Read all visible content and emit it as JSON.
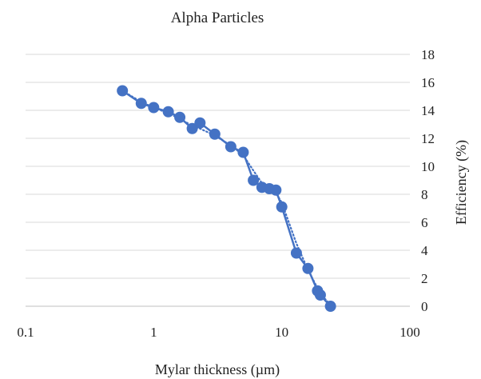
{
  "chart_data": {
    "type": "scatter",
    "title": "Alpha Particles",
    "xlabel": "Mylar thickness (µm)",
    "ylabel": "Efficiency (%)",
    "x_scale": "log",
    "xlim": [
      0.1,
      100
    ],
    "ylim": [
      0,
      18
    ],
    "x_ticks": [
      "0.1",
      "1",
      "10",
      "100"
    ],
    "y_ticks": [
      "0",
      "2",
      "4",
      "6",
      "8",
      "10",
      "12",
      "14",
      "16",
      "18"
    ],
    "y_axis_side": "right",
    "grid": "horizontal",
    "color": "#4472c4",
    "series": [
      {
        "style": "line-markers",
        "x": [
          0.57,
          0.8,
          1.0,
          1.3,
          1.6,
          2.0,
          2.3,
          3.0,
          4.0,
          5.0,
          6.0,
          7.0,
          8.0,
          9.0,
          10.0,
          13.0,
          16.0,
          19.0,
          20.0,
          24.0
        ],
        "y": [
          15.4,
          14.5,
          14.2,
          13.9,
          13.5,
          12.7,
          13.1,
          12.3,
          11.4,
          11.0,
          9.0,
          8.5,
          8.4,
          8.3,
          7.1,
          3.8,
          2.7,
          1.1,
          0.8,
          0.0
        ]
      },
      {
        "style": "dotted-trend",
        "x": [
          0.57,
          0.8,
          1.0,
          1.3,
          1.6,
          2.0,
          2.3,
          3.0,
          4.0,
          5.0,
          6.0,
          7.0,
          8.0,
          9.0,
          10.0,
          13.0,
          16.0,
          19.0,
          20.0,
          24.0
        ],
        "y": [
          15.4,
          14.6,
          14.2,
          13.8,
          13.4,
          12.9,
          12.7,
          12.2,
          11.5,
          10.8,
          9.7,
          8.8,
          8.6,
          8.1,
          7.4,
          4.5,
          2.6,
          1.3,
          0.9,
          0.1
        ]
      }
    ]
  }
}
